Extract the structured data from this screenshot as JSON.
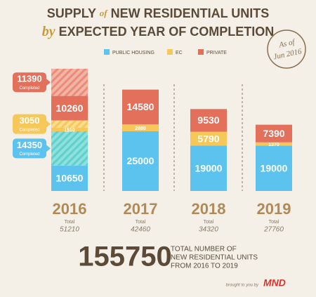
{
  "chart_data": {
    "type": "bar",
    "title": {
      "line1": [
        "SUPPLY",
        "of",
        "NEW RESIDENTIAL UNITS"
      ],
      "line2": [
        "by",
        "EXPECTED YEAR OF COMPLETION"
      ]
    },
    "stamp": {
      "line1": "As of",
      "line2": "Jun 2016"
    },
    "categories": [
      "2016",
      "2017",
      "2018",
      "2019"
    ],
    "completed_label": "Completed",
    "series": [
      {
        "name": "PUBLIC HOUSING",
        "color": "#5cc3ee",
        "values": [
          10650,
          25000,
          19000,
          19000
        ],
        "completed": [
          14350,
          null,
          null,
          null
        ]
      },
      {
        "name": "EC",
        "color": "#f6c85a",
        "values": [
          1510,
          2880,
          5790,
          1370
        ],
        "completed": [
          3050,
          null,
          null,
          null
        ]
      },
      {
        "name": "PRIVATE",
        "color": "#e2705a",
        "values": [
          10260,
          14580,
          9530,
          7390
        ],
        "completed": [
          11390,
          null,
          null,
          null
        ]
      }
    ],
    "total_label": "Total",
    "totals": [
      51210,
      42460,
      34320,
      27760
    ],
    "grand_total": 155750,
    "grand_total_caption": [
      "TOTAL NUMBER OF",
      "NEW RESIDENTIAL UNITS",
      "FROM 2016 TO 2019"
    ],
    "footer": {
      "credit": "brought to you by",
      "logo": "MND"
    }
  }
}
